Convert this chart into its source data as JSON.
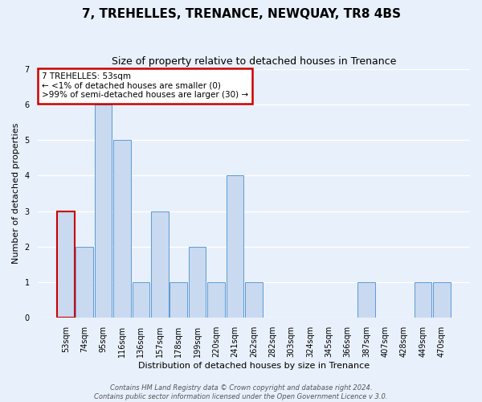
{
  "title": "7, TREHELLES, TRENANCE, NEWQUAY, TR8 4BS",
  "subtitle": "Size of property relative to detached houses in Trenance",
  "xlabel": "Distribution of detached houses by size in Trenance",
  "ylabel": "Number of detached properties",
  "categories": [
    "53sqm",
    "74sqm",
    "95sqm",
    "116sqm",
    "136sqm",
    "157sqm",
    "178sqm",
    "199sqm",
    "220sqm",
    "241sqm",
    "262sqm",
    "282sqm",
    "303sqm",
    "324sqm",
    "345sqm",
    "366sqm",
    "387sqm",
    "407sqm",
    "428sqm",
    "449sqm",
    "470sqm"
  ],
  "values": [
    3,
    2,
    6,
    5,
    1,
    3,
    1,
    2,
    1,
    4,
    1,
    0,
    0,
    0,
    0,
    0,
    1,
    0,
    0,
    1,
    1
  ],
  "bar_color": "#c9d9f0",
  "bar_edge_color": "#5b9bd5",
  "highlight_bar_index": 0,
  "highlight_bar_edge_color": "#cc0000",
  "annotation_box_text": "7 TREHELLES: 53sqm\n← <1% of detached houses are smaller (0)\n>99% of semi-detached houses are larger (30) →",
  "annotation_box_edge_color": "#cc0000",
  "annotation_box_face_color": "#ffffff",
  "ylim": [
    0,
    7
  ],
  "yticks": [
    0,
    1,
    2,
    3,
    4,
    5,
    6,
    7
  ],
  "background_color": "#e8f0fb",
  "grid_color": "#ffffff",
  "footer_line1": "Contains HM Land Registry data © Crown copyright and database right 2024.",
  "footer_line2": "Contains public sector information licensed under the Open Government Licence v 3.0.",
  "title_fontsize": 11,
  "subtitle_fontsize": 9,
  "ylabel_fontsize": 8,
  "xlabel_fontsize": 8,
  "tick_fontsize": 7,
  "footer_fontsize": 6
}
